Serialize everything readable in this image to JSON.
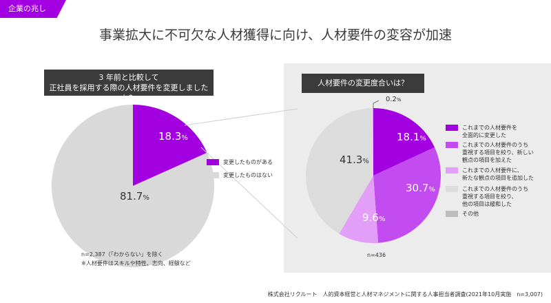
{
  "header": {
    "tag": "企業の兆し",
    "title": "事業拡大に不可欠な人材獲得に向け、人材要件の変容が加速"
  },
  "left": {
    "question_line1": "3 年前と比較して",
    "question_line2": "正社員を採用する際の人材要件を変更しましたか？",
    "note1": "n=2,387（「わからない」を除く",
    "note2": "※人材要件はスキルや特性、志向、経験など"
  },
  "right": {
    "question": "人材要件の変更度合いは？",
    "n": "n=436"
  },
  "source": "株式会社リクルート　人的資本経営と人材マネジメントに関する人事担当者調査(2021年10月実施　n=3,007)",
  "chart_data": [
    {
      "type": "pie",
      "title": "3 年前と比較して正社員を採用する際の人材要件を変更しましたか？",
      "unit": "%",
      "slices": [
        {
          "label": "変更したものがある",
          "value": 18.3,
          "color": "#a200e0",
          "value_label": "18.3",
          "label_color": "#ffffff"
        },
        {
          "label": "変更したものはない",
          "value": 81.7,
          "color": "#d9d9d9",
          "value_label": "81.7",
          "label_color": "#333333"
        }
      ]
    },
    {
      "type": "pie",
      "title": "人材要件の変更度合いは？",
      "unit": "%",
      "slices": [
        {
          "label": "これまでの人材要件を\n全面的に変更した",
          "value": 18.1,
          "color": "#a200e0",
          "value_label": "18.1",
          "label_color": "#ffffff"
        },
        {
          "label": "これまでの人材要件のうち\n重視する項目を絞り、新しい\n観点の項目を加えた",
          "value": 30.7,
          "color": "#c24cf0",
          "value_label": "30.7",
          "label_color": "#ffffff"
        },
        {
          "label": "これまでの人材要件に、\n新たな観点の項目を追加した",
          "value": 9.6,
          "color": "#e39ef7",
          "value_label": "9.6",
          "label_color": "#ffffff"
        },
        {
          "label": "これまでの人材要件のうち\n重視する項目を絞り、\n他の項目は緩和した",
          "value": 41.3,
          "color": "#dcdcdc",
          "value_label": "41.3",
          "label_color": "#333333"
        },
        {
          "label": "その他",
          "value": 0.2,
          "color": "#bdbdbd",
          "value_label": "0.2",
          "label_color": "#333333"
        }
      ]
    }
  ]
}
